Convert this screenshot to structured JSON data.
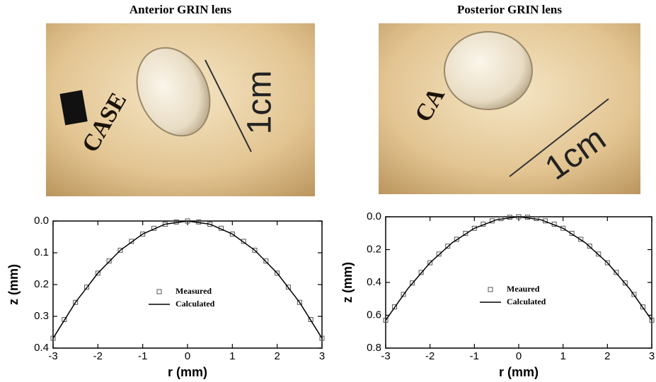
{
  "photos": [
    {
      "title": "Anterior GRIN lens",
      "scale_label": "1cm"
    },
    {
      "title": "Posterior GRIN lens",
      "scale_label": "1cm"
    }
  ],
  "chart_data": [
    {
      "type": "scatter-line",
      "xlabel": "r (mm)",
      "ylabel": "z (mm)",
      "xlim": [
        -3,
        3
      ],
      "xticks": [
        -3,
        -2,
        -1,
        0,
        1,
        2,
        3
      ],
      "ylim": [
        0,
        0.4
      ],
      "y_inverted": true,
      "yticks": [
        {
          "value": 0,
          "label": "0.0"
        },
        0.1,
        0.2,
        0.3,
        0.4
      ],
      "legend": "center",
      "series": [
        {
          "name": "Measured",
          "marker": "square",
          "color": "#555555",
          "x": [
            -3,
            -2.75,
            -2.5,
            -2.25,
            -2,
            -1.75,
            -1.5,
            -1.25,
            -1,
            -0.75,
            -0.5,
            -0.25,
            0,
            0.25,
            0.5,
            0.75,
            1,
            1.25,
            1.5,
            1.75,
            2,
            2.25,
            2.5,
            2.75,
            3
          ],
          "values": [
            0.369,
            0.31,
            0.256,
            0.208,
            0.164,
            0.126,
            0.092,
            0.064,
            0.041,
            0.023,
            0.01,
            0.003,
            0,
            0.003,
            0.01,
            0.023,
            0.041,
            0.064,
            0.092,
            0.126,
            0.164,
            0.208,
            0.256,
            0.31,
            0.369
          ]
        },
        {
          "name": "Calculated",
          "marker": "line",
          "color": "#000000",
          "x": [
            -3,
            -2.5,
            -2,
            -1.5,
            -1,
            -0.5,
            0,
            0.5,
            1,
            1.5,
            2,
            2.5,
            3
          ],
          "values": [
            0.369,
            0.256,
            0.164,
            0.092,
            0.041,
            0.01,
            0,
            0.01,
            0.041,
            0.092,
            0.164,
            0.256,
            0.369
          ]
        }
      ]
    },
    {
      "type": "scatter-line",
      "xlabel": "r (mm)",
      "ylabel": "z (mm)",
      "xlim": [
        -3,
        3
      ],
      "xticks": [
        -3,
        -2,
        -1,
        0,
        1,
        2,
        3
      ],
      "ylim": [
        0,
        0.8
      ],
      "y_inverted": true,
      "yticks": [
        {
          "value": 0,
          "label": "0.0"
        },
        0.2,
        0.4,
        0.6,
        0.8
      ],
      "legend": "center",
      "series": [
        {
          "name": "Meaured",
          "marker": "square",
          "color": "#555555",
          "x": [
            -3,
            -2.8,
            -2.6,
            -2.4,
            -2.2,
            -2,
            -1.8,
            -1.6,
            -1.4,
            -1.2,
            -1,
            -0.8,
            -0.6,
            -0.4,
            -0.2,
            0,
            0.2,
            0.4,
            0.6,
            0.8,
            1,
            1.2,
            1.4,
            1.6,
            1.8,
            2,
            2.2,
            2.4,
            2.6,
            2.8,
            3
          ],
          "values": [
            0.63,
            0.549,
            0.473,
            0.403,
            0.339,
            0.28,
            0.227,
            0.179,
            0.137,
            0.101,
            0.07,
            0.045,
            0.025,
            0.011,
            0.003,
            0,
            0.003,
            0.011,
            0.025,
            0.045,
            0.07,
            0.101,
            0.137,
            0.179,
            0.227,
            0.28,
            0.339,
            0.403,
            0.473,
            0.549,
            0.63
          ]
        },
        {
          "name": "Calculated",
          "marker": "line",
          "color": "#000000",
          "x": [
            -3,
            -2.5,
            -2,
            -1.5,
            -1,
            -0.5,
            0,
            0.5,
            1,
            1.5,
            2,
            2.5,
            3
          ],
          "values": [
            0.63,
            0.438,
            0.28,
            0.158,
            0.07,
            0.018,
            0,
            0.018,
            0.07,
            0.158,
            0.28,
            0.438,
            0.63
          ]
        }
      ]
    }
  ]
}
